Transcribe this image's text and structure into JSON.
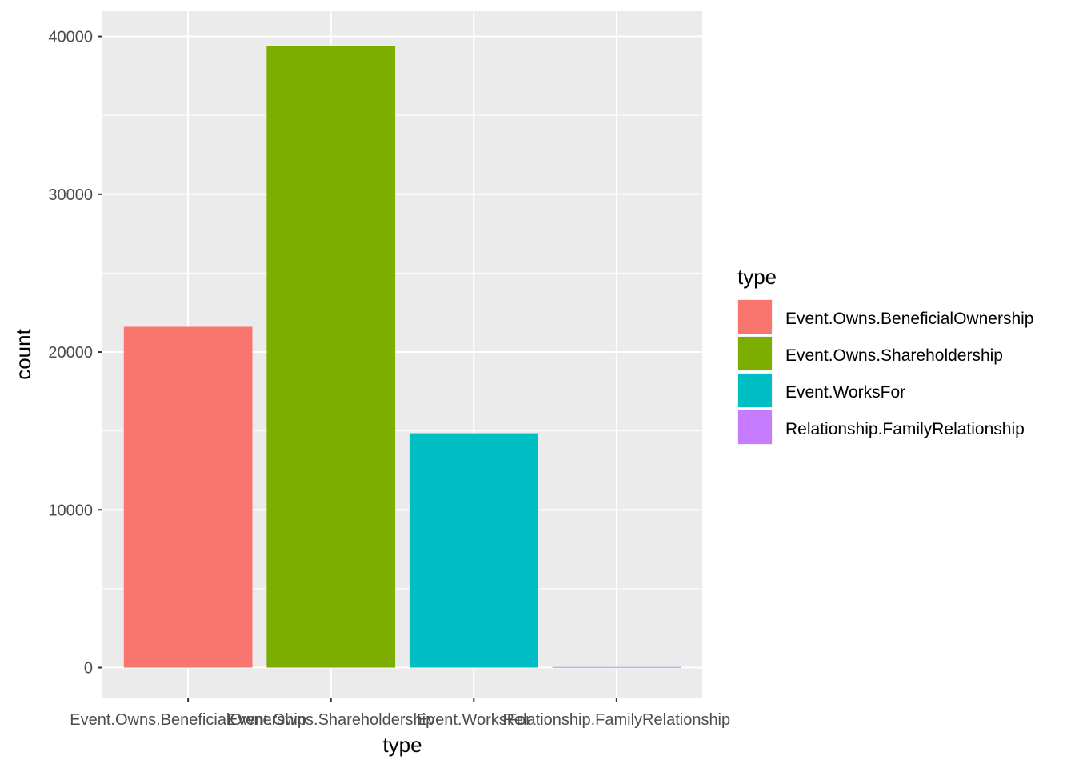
{
  "chart_data": {
    "type": "bar",
    "categories": [
      "Event.Owns.BeneficialOwnership",
      "Event.Owns.Shareholdership",
      "Event.WorksFor",
      "Relationship.FamilyRelationship"
    ],
    "values": [
      21600,
      39400,
      14850,
      40
    ],
    "colors": [
      "#F8766D",
      "#7CAE00",
      "#00BFC4",
      "#C77CFF"
    ],
    "xlabel": "type",
    "ylabel": "count",
    "ylim": [
      -1900,
      41600
    ],
    "yticks": [
      0,
      10000,
      20000,
      30000,
      40000
    ],
    "ytick_labels": [
      "0",
      "10000",
      "20000",
      "30000",
      "40000"
    ],
    "grid": true,
    "legend": {
      "title": "type",
      "position": "right",
      "entries": [
        "Event.Owns.BeneficialOwnership",
        "Event.Owns.Shareholdership",
        "Event.WorksFor",
        "Relationship.FamilyRelationship"
      ]
    }
  }
}
